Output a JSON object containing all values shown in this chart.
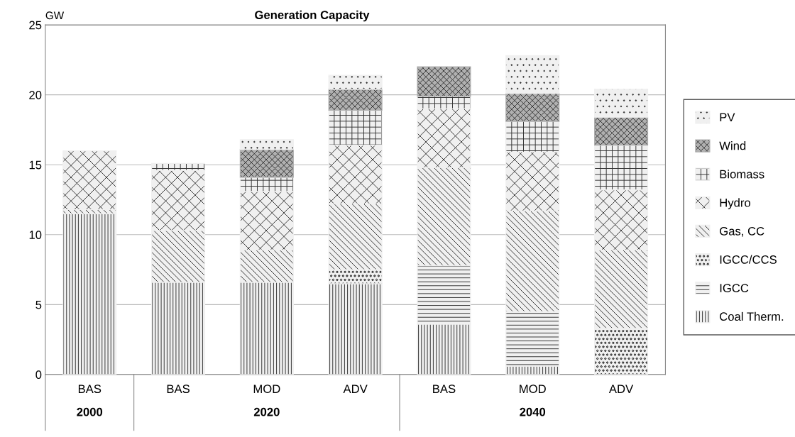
{
  "chart_data": {
    "type": "bar",
    "title": "Generation Capacity",
    "ylabel": "GW",
    "stacked": true,
    "categories": [
      "BAS",
      "BAS",
      "MOD",
      "ADV",
      "BAS",
      "MOD",
      "ADV"
    ],
    "annotations": [
      "2000",
      "2020",
      "2040"
    ],
    "series": [
      {
        "name": "Coal Therm.",
        "color": "#f0f0f0",
        "values": [
          11.5,
          6.6,
          6.6,
          6.5,
          3.6,
          0.6,
          null
        ]
      },
      {
        "name": "IGCC",
        "color": "#f0f0f0",
        "values": [
          null,
          null,
          null,
          null,
          4.2,
          3.9,
          null
        ]
      },
      {
        "name": "IGCC/CCS",
        "color": "#f0f0f0",
        "values": [
          null,
          null,
          null,
          1.0,
          null,
          null,
          3.3
        ]
      },
      {
        "name": "Gas, CC",
        "color": "#f0f0f0",
        "values": [
          0.3,
          3.7,
          2.3,
          4.7,
          7.0,
          7.2,
          5.6
        ]
      },
      {
        "name": "Hydro",
        "color": "#f0f0f0",
        "values": [
          4.2,
          4.3,
          4.2,
          4.2,
          4.2,
          4.2,
          4.3
        ]
      },
      {
        "name": "Biomass",
        "color": "#f0f0f0",
        "values": [
          null,
          0.5,
          1.0,
          2.5,
          0.9,
          2.2,
          3.2
        ]
      },
      {
        "name": "Wind",
        "color": "#b0b0b0",
        "values": [
          null,
          null,
          2.0,
          1.5,
          2.1,
          2.0,
          2.0
        ]
      },
      {
        "name": "PV",
        "color": "#f0f0f0",
        "values": [
          null,
          null,
          0.7,
          1.0,
          null,
          2.7,
          2.0
        ]
      }
    ],
    "ylim": [
      0,
      25
    ],
    "yticks": [
      0,
      5,
      10,
      15,
      20,
      25
    ],
    "grid": "y",
    "legend": "right"
  }
}
